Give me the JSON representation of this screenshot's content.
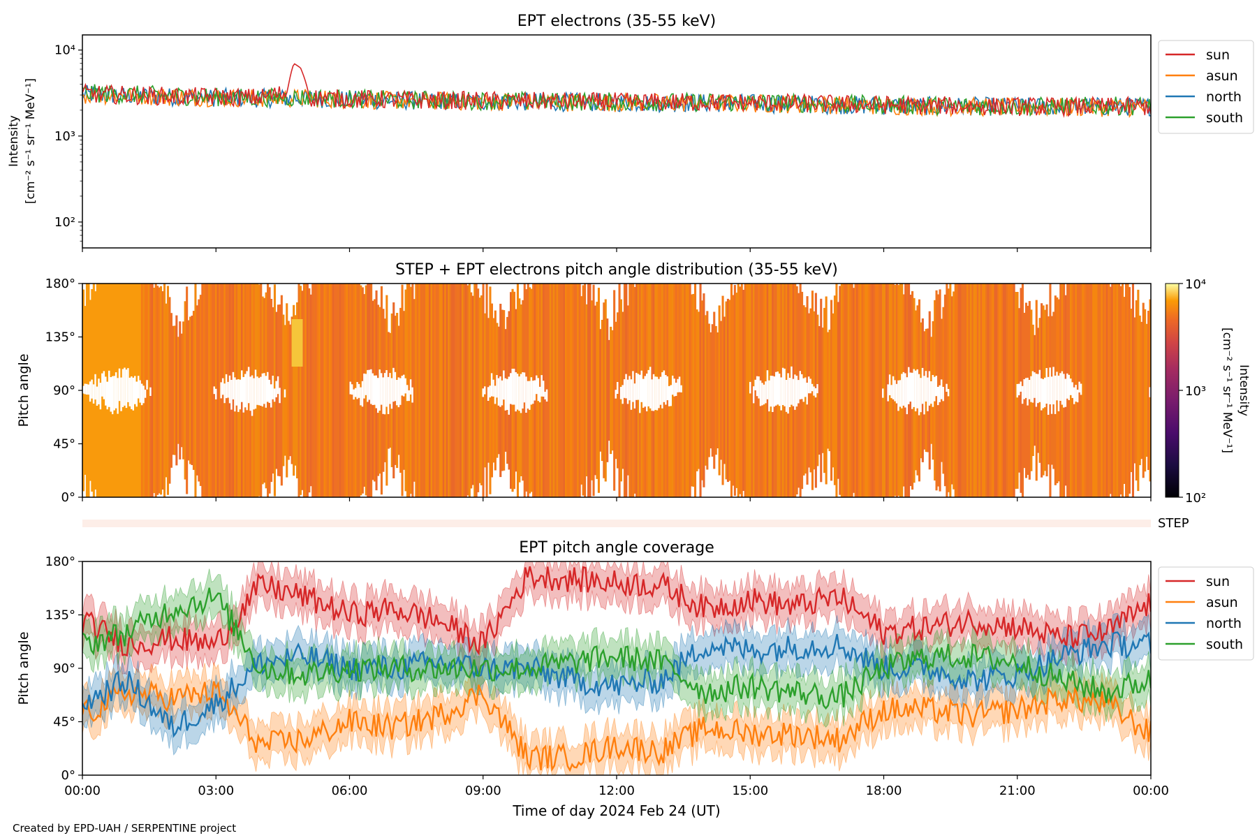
{
  "footer": "Created by EPD-UAH / SERPENTINE project",
  "colors": {
    "sun": "#d62728",
    "asun": "#ff7f0e",
    "north": "#1f77b4",
    "south": "#2ca02c"
  },
  "time_ticks": [
    "00:00",
    "03:00",
    "06:00",
    "09:00",
    "12:00",
    "15:00",
    "18:00",
    "21:00",
    "00:00"
  ],
  "xlabel": "Time of day 2024 Feb 24 (UT)",
  "chart_data": [
    {
      "type": "line",
      "title": "EPT electrons (35-55 keV)",
      "ylabel": [
        "Intensity",
        "[cm⁻² s⁻¹ sr⁻¹ MeV⁻¹]"
      ],
      "yscale": "log",
      "ylim": [
        50,
        15000
      ],
      "ytick_labels": [
        "10²",
        "10³",
        "10⁴"
      ],
      "legend": [
        "sun",
        "asun",
        "north",
        "south"
      ],
      "legend_position": "upper right outside",
      "x_hours": [
        0,
        1,
        2,
        3,
        4,
        4.6,
        4.75,
        4.9,
        5.1,
        6,
        8,
        10,
        12,
        15,
        18,
        21,
        24
      ],
      "series": [
        {
          "name": "sun",
          "values": [
            3100,
            3000,
            2900,
            2850,
            2800,
            3200,
            7000,
            6200,
            2800,
            2700,
            2600,
            2550,
            2500,
            2450,
            2300,
            2200,
            2200
          ]
        },
        {
          "name": "asun",
          "values": [
            3000,
            3000,
            2850,
            2800,
            2750,
            2750,
            2750,
            2750,
            2750,
            2650,
            2550,
            2500,
            2450,
            2400,
            2250,
            2150,
            2150
          ]
        },
        {
          "name": "north",
          "values": [
            3050,
            2950,
            2850,
            2800,
            2750,
            2750,
            2750,
            2750,
            2750,
            2650,
            2550,
            2500,
            2450,
            2400,
            2250,
            2200,
            2200
          ]
        },
        {
          "name": "south",
          "values": [
            3150,
            3050,
            2950,
            2850,
            2800,
            2800,
            2800,
            2800,
            2800,
            2700,
            2600,
            2550,
            2500,
            2450,
            2300,
            2200,
            2250
          ]
        }
      ]
    },
    {
      "type": "heatmap",
      "title": "STEP + EPT electrons pitch angle distribution (35-55 keV)",
      "ylabel": "Pitch angle",
      "ylim": [
        0,
        180
      ],
      "ytick_labels": [
        "0°",
        "45°",
        "90°",
        "135°",
        "180°"
      ],
      "colorbar": {
        "label": [
          "Intensity",
          "[cm⁻² s⁻¹ sr⁻¹ MeV⁻¹]"
        ],
        "scale": "log",
        "range": [
          100,
          10000
        ],
        "tick_labels": [
          "10²",
          "10³",
          "10⁴"
        ],
        "colormap": "inferno"
      },
      "step_label": "STEP"
    },
    {
      "type": "line",
      "title": "EPT pitch angle coverage",
      "ylabel": "Pitch angle",
      "ylim": [
        0,
        180
      ],
      "ytick_labels": [
        "0°",
        "45°",
        "90°",
        "135°",
        "180°"
      ],
      "legend": [
        "sun",
        "asun",
        "north",
        "south"
      ],
      "legend_position": "upper right outside",
      "bands": "shaded pitch-angle range around each series",
      "x_hours": [
        0,
        1,
        2,
        3,
        4,
        5,
        6,
        7,
        8,
        9,
        10,
        11,
        12,
        13,
        14,
        15,
        16,
        17,
        18,
        19,
        20,
        21,
        22,
        23,
        24
      ],
      "series": [
        {
          "name": "sun",
          "values": [
            130,
            110,
            115,
            110,
            160,
            150,
            135,
            140,
            130,
            110,
            168,
            165,
            162,
            160,
            140,
            148,
            142,
            150,
            120,
            125,
            130,
            125,
            115,
            120,
            145
          ]
        },
        {
          "name": "asun",
          "values": [
            50,
            70,
            65,
            70,
            25,
            30,
            45,
            40,
            50,
            70,
            15,
            15,
            25,
            20,
            40,
            35,
            35,
            30,
            55,
            55,
            50,
            55,
            65,
            60,
            35
          ]
        },
        {
          "name": "north",
          "values": [
            60,
            80,
            40,
            60,
            95,
            100,
            90,
            90,
            95,
            90,
            90,
            80,
            75,
            80,
            110,
            105,
            108,
            110,
            90,
            90,
            80,
            85,
            100,
            110,
            110
          ]
        },
        {
          "name": "south",
          "values": [
            110,
            120,
            140,
            150,
            90,
            85,
            90,
            90,
            90,
            90,
            90,
            95,
            100,
            95,
            70,
            75,
            70,
            65,
            90,
            100,
            100,
            95,
            80,
            70,
            80
          ]
        }
      ]
    }
  ]
}
